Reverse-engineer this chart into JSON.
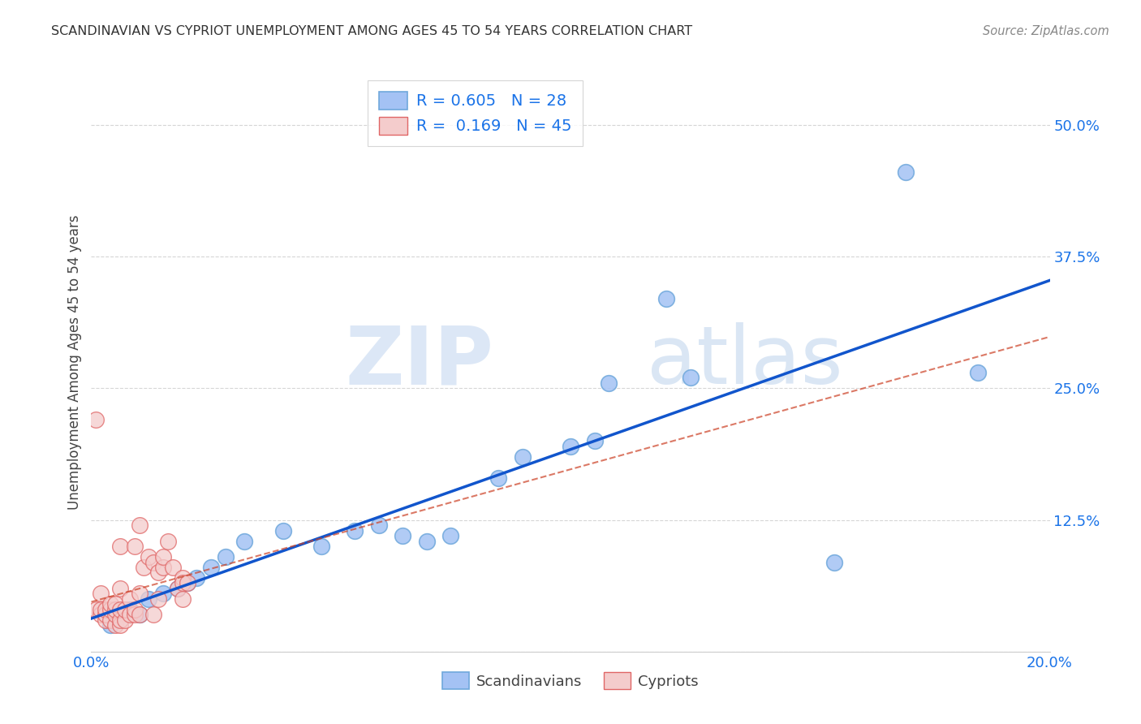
{
  "title": "SCANDINAVIAN VS CYPRIOT UNEMPLOYMENT AMONG AGES 45 TO 54 YEARS CORRELATION CHART",
  "source": "Source: ZipAtlas.com",
  "ylabel": "Unemployment Among Ages 45 to 54 years",
  "xlim": [
    0.0,
    0.2
  ],
  "ylim": [
    0.0,
    0.55
  ],
  "xticks": [
    0.0,
    0.05,
    0.1,
    0.15,
    0.2
  ],
  "xtick_labels": [
    "0.0%",
    "",
    "",
    "",
    "20.0%"
  ],
  "ytick_labels": [
    "",
    "12.5%",
    "25.0%",
    "37.5%",
    "50.0%"
  ],
  "yticks": [
    0.0,
    0.125,
    0.25,
    0.375,
    0.5
  ],
  "blue_color": "#a4c2f4",
  "pink_color": "#f4cccc",
  "blue_edge_color": "#6fa8dc",
  "pink_edge_color": "#e06666",
  "blue_line_color": "#1155cc",
  "pink_line_color": "#cc4125",
  "legend_R_blue": "0.605",
  "legend_N_blue": "28",
  "legend_R_pink": "0.169",
  "legend_N_pink": "45",
  "watermark_zip": "ZIP",
  "watermark_atlas": "atlas",
  "background_color": "#ffffff",
  "scandinavian_x": [
    0.004,
    0.008,
    0.01,
    0.012,
    0.015,
    0.018,
    0.02,
    0.022,
    0.025,
    0.028,
    0.032,
    0.04,
    0.048,
    0.055,
    0.06,
    0.065,
    0.07,
    0.075,
    0.085,
    0.09,
    0.1,
    0.105,
    0.108,
    0.12,
    0.125,
    0.155,
    0.17,
    0.185
  ],
  "scandinavian_y": [
    0.025,
    0.04,
    0.035,
    0.05,
    0.055,
    0.06,
    0.065,
    0.07,
    0.08,
    0.09,
    0.105,
    0.115,
    0.1,
    0.115,
    0.12,
    0.11,
    0.105,
    0.11,
    0.165,
    0.185,
    0.195,
    0.2,
    0.255,
    0.335,
    0.26,
    0.085,
    0.455,
    0.265
  ],
  "cypriot_x": [
    0.001,
    0.001,
    0.002,
    0.002,
    0.002,
    0.003,
    0.003,
    0.003,
    0.004,
    0.004,
    0.004,
    0.005,
    0.005,
    0.005,
    0.005,
    0.006,
    0.006,
    0.006,
    0.006,
    0.006,
    0.007,
    0.007,
    0.008,
    0.008,
    0.009,
    0.009,
    0.009,
    0.01,
    0.01,
    0.01,
    0.011,
    0.012,
    0.013,
    0.013,
    0.014,
    0.014,
    0.015,
    0.015,
    0.016,
    0.017,
    0.018,
    0.019,
    0.019,
    0.019,
    0.02
  ],
  "cypriot_y": [
    0.04,
    0.22,
    0.035,
    0.04,
    0.055,
    0.03,
    0.035,
    0.04,
    0.03,
    0.04,
    0.045,
    0.025,
    0.035,
    0.04,
    0.045,
    0.025,
    0.03,
    0.04,
    0.06,
    0.1,
    0.03,
    0.04,
    0.035,
    0.05,
    0.035,
    0.04,
    0.1,
    0.035,
    0.055,
    0.12,
    0.08,
    0.09,
    0.035,
    0.085,
    0.05,
    0.075,
    0.08,
    0.09,
    0.105,
    0.08,
    0.06,
    0.05,
    0.07,
    0.065,
    0.065
  ]
}
